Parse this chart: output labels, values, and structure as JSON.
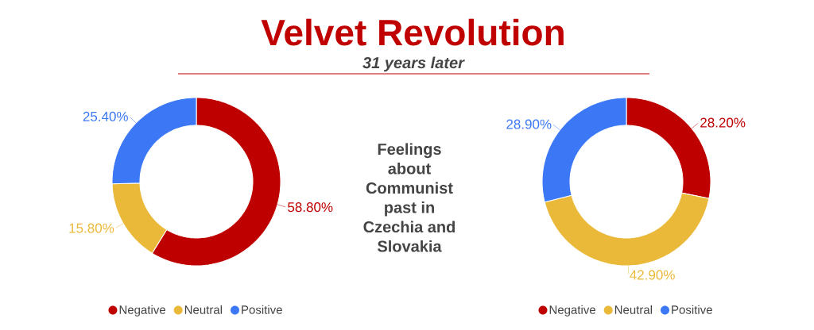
{
  "chart_data": [
    {
      "type": "other",
      "title": "Velvet Revolution",
      "subtitle": "31 years later",
      "annotations": [
        "Feelings about Communist past in Czechia and Slovakia"
      ]
    },
    {
      "type": "donut",
      "categories": [
        "Negative",
        "Neutral",
        "Positive"
      ],
      "values": [
        58.8,
        15.8,
        25.4
      ],
      "colors": [
        "#bf0000",
        "#ebb93a",
        "#3c78f5"
      ],
      "value_labels": [
        "58.80%",
        "15.80%",
        "25.40%"
      ],
      "legend": "bottom"
    },
    {
      "type": "donut",
      "categories": [
        "Negative",
        "Neutral",
        "Positive"
      ],
      "values": [
        28.2,
        42.9,
        28.9
      ],
      "colors": [
        "#bf0000",
        "#ebb93a",
        "#3c78f5"
      ],
      "value_labels": [
        "28.20%",
        "42.90%",
        "28.90%"
      ],
      "legend": "bottom"
    }
  ]
}
